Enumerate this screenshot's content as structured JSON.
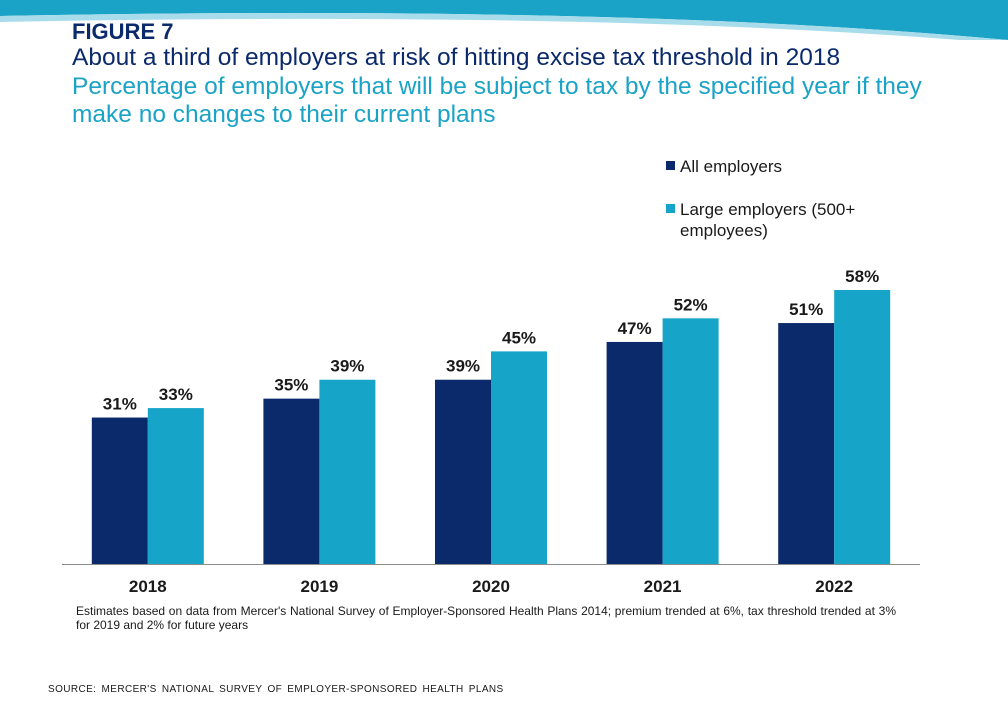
{
  "figure_label": "FIGURE 7",
  "source_note": "SOURCE: MERCER'S NATIONAL SURVEY OF EMPLOYER-SPONSORED HEALTH PLANS",
  "colors": {
    "all_employers": "#0b2a6b",
    "large_employers": "#16a4c8",
    "title": "#0b2a6b",
    "subtitle": "#1aa3c6"
  },
  "chart_data": {
    "type": "bar",
    "title": "About a third of employers at risk of hitting excise tax threshold in 2018",
    "subtitle": "Percentage of employers that will be subject to tax by the specified year if they make no changes to their current plans",
    "categories": [
      "2018",
      "2019",
      "2020",
      "2021",
      "2022"
    ],
    "series": [
      {
        "name": "All employers",
        "values": [
          31,
          35,
          39,
          47,
          51
        ]
      },
      {
        "name": "Large employers (500+ employees)",
        "values": [
          33,
          39,
          45,
          52,
          58
        ]
      }
    ],
    "value_labels": [
      [
        "31%",
        "35%",
        "39%",
        "47%",
        "51%"
      ],
      [
        "33%",
        "39%",
        "45%",
        "52%",
        "58%"
      ]
    ],
    "xlabel": "",
    "ylabel": "",
    "ylim": [
      0,
      69
    ],
    "grid": false,
    "legend": "top-right",
    "note": "Estimates based on data from Mercer's National Survey of Employer-Sponsored Health Plans 2014; premium trended at 6%, tax threshold trended at 3% for 2019 and 2% for future years"
  }
}
